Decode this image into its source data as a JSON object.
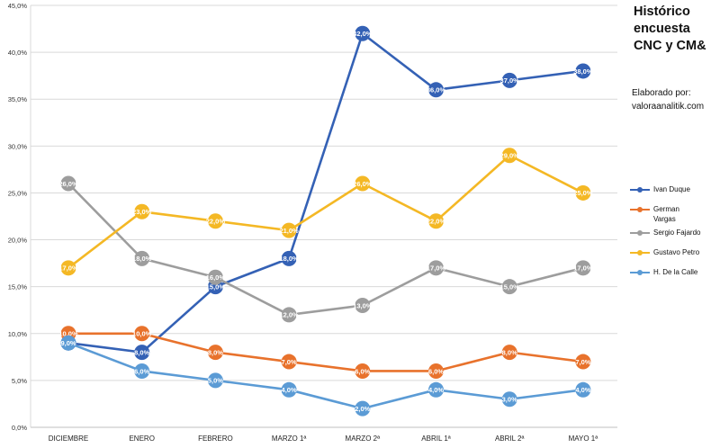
{
  "chart_data": {
    "type": "line",
    "title": "Histórico encuesta CNC y CM&",
    "credit_lines": [
      "Elaborado por:",
      "valoraanalitik.com"
    ],
    "categories": [
      "DICIEMBRE",
      "ENERO",
      "FEBRERO",
      "MARZO 1ª",
      "MARZO 2ª",
      "ABRIL 1ª",
      "ABRIL 2ª",
      "MAYO 1ª"
    ],
    "ylim": [
      0,
      45
    ],
    "yticks": [
      "0,0%",
      "5,0%",
      "10,0%",
      "15,0%",
      "20,0%",
      "25,0%",
      "30,0%",
      "35,0%",
      "40,0%",
      "45,0%"
    ],
    "grid": true,
    "legend_position": "right",
    "series": [
      {
        "name": "Ivan Duque",
        "color": "#3461b5",
        "values": [
          9,
          8,
          15,
          18,
          42,
          36,
          37,
          38
        ],
        "labels": [
          "9,0%",
          "8,0%",
          "15,0%",
          "18,0%",
          "42,0%",
          "36,0%",
          "37,0%",
          "38,0%"
        ]
      },
      {
        "name": "German Vargas",
        "color": "#e8722c",
        "values": [
          10,
          10,
          8,
          7,
          6,
          6,
          8,
          7
        ],
        "labels": [
          "10,0%",
          "10,0%",
          "8,0%",
          "7,0%",
          "6,0%",
          "6,0%",
          "8,0%",
          "7,0%"
        ]
      },
      {
        "name": "Sergio Fajardo",
        "color": "#9d9d9d",
        "values": [
          26,
          18,
          16,
          12,
          13,
          17,
          15,
          17
        ],
        "labels": [
          "26,0%",
          "18,0%",
          "16,0%",
          "12,0%",
          "13,0%",
          "17,0%",
          "15,0%",
          "17,0%"
        ]
      },
      {
        "name": "Gustavo Petro",
        "color": "#f4b825",
        "values": [
          17,
          23,
          22,
          21,
          26,
          22,
          29,
          25
        ],
        "labels": [
          "17,0%",
          "23,0%",
          "22,0%",
          "21,0%",
          "26,0%",
          "22,0%",
          "29,0%",
          "25,0%"
        ]
      },
      {
        "name": "H. De la Calle",
        "color": "#5b9bd5",
        "values": [
          9,
          6,
          5,
          4,
          2,
          4,
          3,
          4
        ],
        "labels": [
          "9,0%",
          "6,0%",
          "5,0%",
          "4,0%",
          "2,0%",
          "4,0%",
          "3,0%",
          "4,0%"
        ]
      }
    ]
  }
}
